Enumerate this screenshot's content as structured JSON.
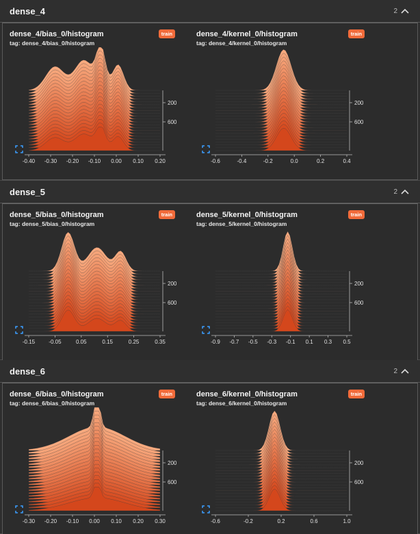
{
  "colors": {
    "accent": "#f26b3a",
    "background": "#2e2e2e",
    "histogram_base": "#d4471c",
    "histogram_top": "#f7a97e"
  },
  "sections": [
    {
      "name": "dense_4",
      "count": "2",
      "cards": [
        {
          "title": "dense_4/bias_0/histogram",
          "tag": "tag: dense_4/bias_0/histogram",
          "badge": "train",
          "chart_data": {
            "type": "area",
            "x_ticks": [
              "-0.40",
              "-0.30",
              "-0.20",
              "-0.10",
              "0.00",
              "0.10",
              "0.20"
            ],
            "x_range": [
              -0.42,
              0.2
            ],
            "y_ticks": [
              "200",
              "600"
            ],
            "y_range": [
              0,
              800
            ]
          }
        },
        {
          "title": "dense_4/kernel_0/histogram",
          "tag": "tag: dense_4/kernel_0/histogram",
          "badge": "train",
          "chart_data": {
            "type": "area",
            "x_ticks": [
              "-0.6",
              "-0.4",
              "-0.2",
              "0.0",
              "0.2",
              "0.4"
            ],
            "x_range": [
              -0.7,
              0.4
            ],
            "y_ticks": [
              "200",
              "600"
            ],
            "y_range": [
              0,
              800
            ]
          }
        }
      ]
    },
    {
      "name": "dense_5",
      "count": "2",
      "cards": [
        {
          "title": "dense_5/bias_0/histogram",
          "tag": "tag: dense_5/bias_0/histogram",
          "badge": "train",
          "chart_data": {
            "type": "area",
            "x_ticks": [
              "-0.15",
              "-0.05",
              "0.05",
              "0.15",
              "0.25",
              "0.35"
            ],
            "x_range": [
              -0.2,
              0.35
            ],
            "y_ticks": [
              "200",
              "600"
            ],
            "y_range": [
              0,
              800
            ]
          }
        },
        {
          "title": "dense_5/kernel_0/histogram",
          "tag": "tag: dense_5/kernel_0/histogram",
          "badge": "train",
          "chart_data": {
            "type": "area",
            "x_ticks": [
              "-0.9",
              "-0.7",
              "-0.5",
              "-0.3",
              "-0.1",
              "0.1",
              "0.3",
              "0.5"
            ],
            "x_range": [
              -0.95,
              0.5
            ],
            "y_ticks": [
              "200",
              "600"
            ],
            "y_range": [
              0,
              800
            ]
          }
        }
      ]
    },
    {
      "name": "dense_6",
      "count": "2",
      "cards": [
        {
          "title": "dense_6/bias_0/histogram",
          "tag": "tag: dense_6/bias_0/histogram",
          "badge": "train",
          "chart_data": {
            "type": "area",
            "x_ticks": [
              "-0.30",
              "-0.20",
              "-0.10",
              "0.00",
              "0.10",
              "0.20",
              "0.30"
            ],
            "x_range": [
              -0.34,
              0.32
            ],
            "y_ticks": [
              "200",
              "600"
            ],
            "y_range": [
              0,
              800
            ]
          }
        },
        {
          "title": "dense_6/kernel_0/histogram",
          "tag": "tag: dense_6/kernel_0/histogram",
          "badge": "train",
          "chart_data": {
            "type": "area",
            "x_ticks": [
              "-0.6",
              "-0.2",
              "0.2",
              "0.6",
              "1.0"
            ],
            "x_range": [
              -0.7,
              1.0
            ],
            "y_ticks": [
              "200",
              "600"
            ],
            "y_range": [
              0,
              800
            ]
          }
        }
      ]
    }
  ]
}
